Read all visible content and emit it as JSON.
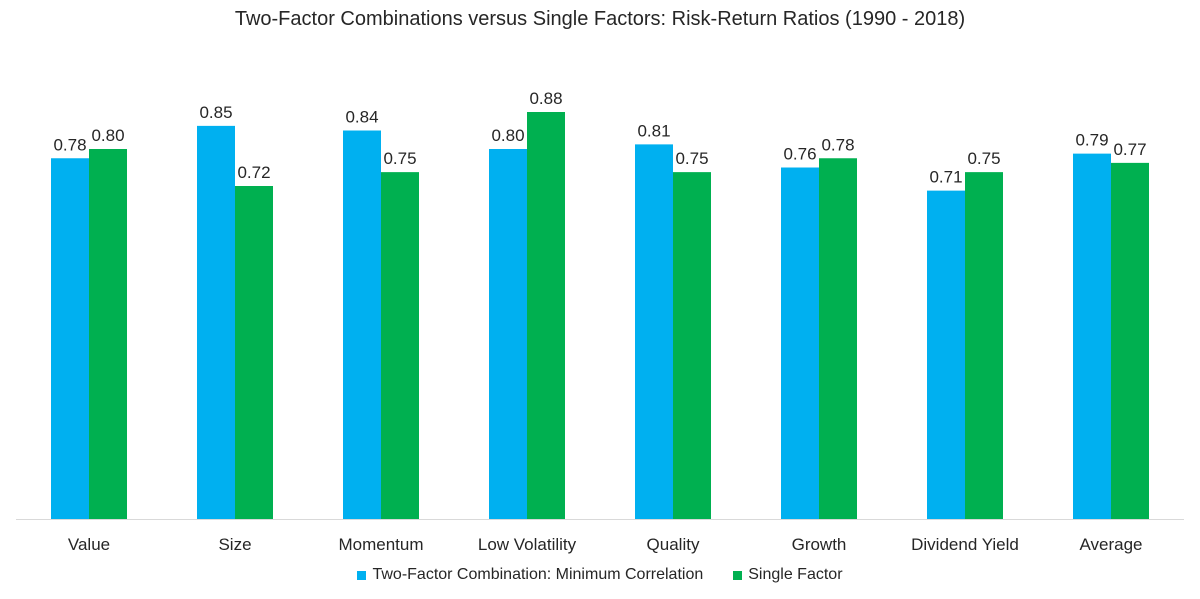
{
  "chart_data": {
    "type": "bar",
    "title": "Two-Factor Combinations versus Single Factors: Risk-Return Ratios (1990 - 2018)",
    "xlabel": "",
    "ylabel": "",
    "ylim": [
      0,
      1.0
    ],
    "grid": false,
    "legend": "bottom",
    "categories": [
      "Value",
      "Size",
      "Momentum",
      "Low Volatility",
      "Quality",
      "Growth",
      "Dividend Yield",
      "Average"
    ],
    "series": [
      {
        "name": "Two-Factor Combination: Minimum Correlation",
        "color": "#00b0f0",
        "values": [
          0.78,
          0.85,
          0.84,
          0.8,
          0.81,
          0.76,
          0.71,
          0.79
        ],
        "labels": [
          "0.78",
          "0.85",
          "0.84",
          "0.80",
          "0.81",
          "0.76",
          "0.71",
          "0.79"
        ]
      },
      {
        "name": "Single Factor",
        "color": "#00b050",
        "values": [
          0.8,
          0.72,
          0.75,
          0.88,
          0.75,
          0.78,
          0.75,
          0.77
        ],
        "labels": [
          "0.80",
          "0.72",
          "0.75",
          "0.88",
          "0.75",
          "0.78",
          "0.75",
          "0.77"
        ]
      }
    ]
  }
}
